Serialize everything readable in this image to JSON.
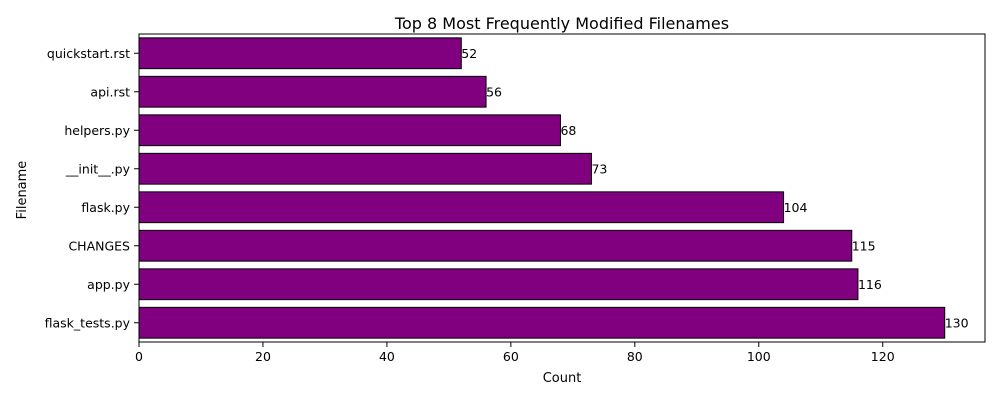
{
  "chart_data": {
    "type": "bar",
    "orientation": "horizontal",
    "title": "Top 8 Most Frequently Modified Filenames",
    "xlabel": "Count",
    "ylabel": "Filename",
    "categories": [
      "flask_tests.py",
      "app.py",
      "CHANGES",
      "flask.py",
      "__init__.py",
      "helpers.py",
      "api.rst",
      "quickstart.rst"
    ],
    "values": [
      130,
      116,
      115,
      104,
      73,
      68,
      56,
      52
    ],
    "xlim": [
      0,
      136.5
    ],
    "xticks": [
      0,
      20,
      40,
      60,
      80,
      100,
      120
    ],
    "grid": false,
    "legend": "none",
    "bar_color": "#800080",
    "edge_color": "#000000",
    "data_labels": true
  }
}
